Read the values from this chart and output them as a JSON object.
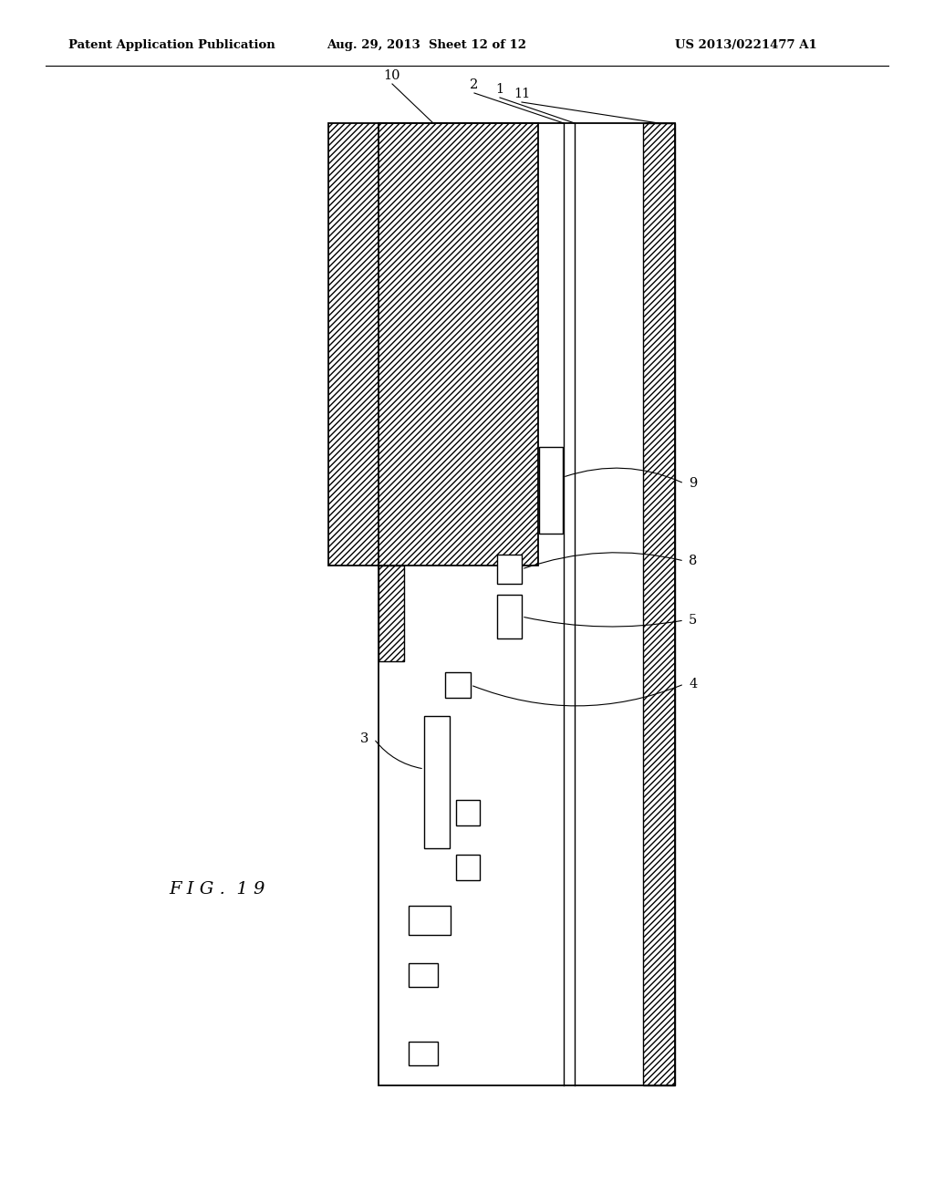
{
  "bg_color": "#ffffff",
  "header_left": "Patent Application Publication",
  "header_mid": "Aug. 29, 2013  Sheet 12 of 12",
  "header_right": "US 2013/0221477 A1",
  "fig_label": "F I G .  1 9"
}
